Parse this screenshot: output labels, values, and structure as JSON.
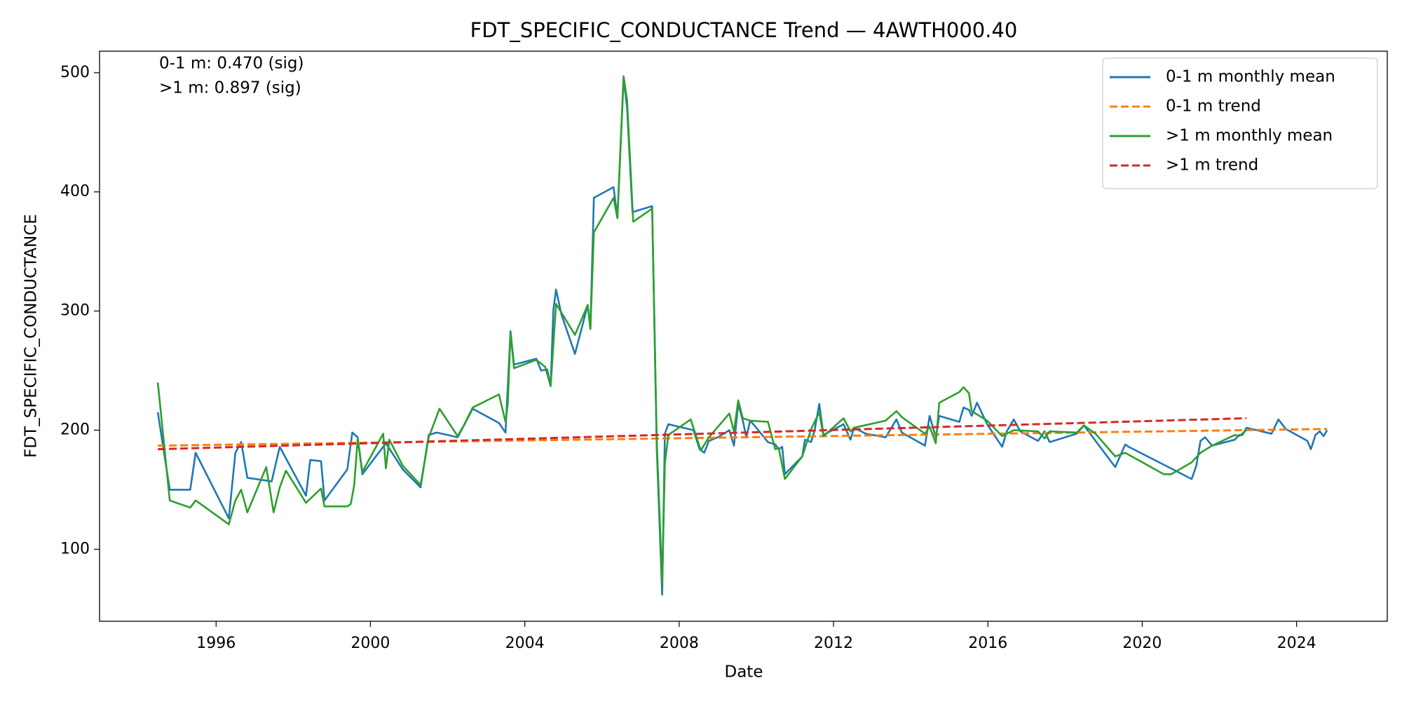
{
  "chart_data": {
    "type": "line",
    "title": "FDT_SPECIFIC_CONDUCTANCE Trend — 4AWTH000.40",
    "xlabel": "Date",
    "ylabel": "FDT_SPECIFIC_CONDUCTANCE",
    "annotations": [
      "0-1 m: 0.470 (sig)",
      ">1 m: 0.897 (sig)"
    ],
    "legend": "upper right",
    "grid": false,
    "xlim": [
      1992.98,
      2026.35
    ],
    "xticks": [
      1996,
      2000,
      2004,
      2008,
      2012,
      2016,
      2020,
      2024
    ],
    "ylim": [
      39.6,
      518.1
    ],
    "yticks": [
      100,
      200,
      300,
      400,
      500
    ],
    "series": [
      {
        "name": "0-1 m monthly mean",
        "color": "#1f77b4",
        "style": "solid",
        "x": [
          1994.49,
          1994.8,
          1995.33,
          1995.47,
          1996.33,
          1996.5,
          1996.65,
          1996.81,
          1997.44,
          1997.65,
          1998.33,
          1998.44,
          1998.72,
          1998.81,
          1999.4,
          1999.53,
          1999.67,
          1999.79,
          2000.4,
          2000.84,
          2001.3,
          2001.51,
          2001.72,
          2002.26,
          2002.65,
          2003.33,
          2003.5,
          2003.63,
          2003.72,
          2004.3,
          2004.42,
          2004.58,
          2004.67,
          2004.74,
          2004.81,
          2004.95,
          2005.3,
          2005.63,
          2005.7,
          2005.79,
          2006.3,
          2006.4,
          2006.56,
          2006.65,
          2006.79,
          2007.3,
          2007.42,
          2007.56,
          2007.63,
          2007.72,
          2008.37,
          2008.53,
          2008.65,
          2008.77,
          2009.0,
          2009.3,
          2009.42,
          2009.53,
          2009.65,
          2009.74,
          2009.84,
          2010.0,
          2010.3,
          2010.49,
          2010.58,
          2010.67,
          2010.74,
          2011.19,
          2011.26,
          2011.42,
          2011.51,
          2011.63,
          2011.74,
          2012.26,
          2012.44,
          2012.53,
          2012.84,
          2013.35,
          2013.63,
          2013.77,
          2014.37,
          2014.49,
          2014.65,
          2014.74,
          2015.26,
          2015.37,
          2015.51,
          2015.58,
          2015.72,
          2015.98,
          2016.37,
          2016.49,
          2016.67,
          2016.84,
          2017.3,
          2017.47,
          2017.6,
          2018.3,
          2018.49,
          2018.79,
          2019.3,
          2019.56,
          2019.65,
          2020.56,
          2021.28,
          2021.4,
          2021.51,
          2021.63,
          2021.81,
          2022.4,
          2022.51,
          2022.6,
          2022.7,
          2023.35,
          2023.53,
          2023.72,
          2024.28,
          2024.37,
          2024.49,
          2024.6,
          2024.7,
          2024.79
        ],
        "values": [
          215,
          150,
          150,
          181,
          126,
          181,
          190,
          160,
          157,
          186,
          145,
          175,
          174,
          141,
          167,
          198,
          194,
          163,
          189,
          167,
          152,
          196,
          198,
          194,
          218,
          206,
          198,
          283,
          255,
          260,
          250,
          251,
          237,
          301,
          318,
          297,
          264,
          305,
          285,
          395,
          404,
          378,
          495,
          471,
          383,
          388,
          184,
          62,
          197,
          205,
          200,
          184,
          181,
          191,
          194,
          200,
          187,
          222,
          208,
          194,
          208,
          202,
          190,
          188,
          184,
          186,
          163,
          178,
          192,
          190,
          200,
          222,
          196,
          205,
          192,
          202,
          197,
          194,
          209,
          198,
          187,
          212,
          194,
          212,
          207,
          219,
          217,
          212,
          223,
          205,
          186,
          199,
          209,
          199,
          191,
          199,
          190,
          197,
          204,
          191,
          169,
          188,
          186,
          171,
          159,
          170,
          191,
          194,
          187,
          192,
          196,
          196,
          202,
          197,
          209,
          201,
          191,
          184,
          196,
          199,
          195,
          200
        ]
      },
      {
        "name": "0-1 m trend",
        "color": "#ff7f0e",
        "style": "dashed",
        "x": [
          1994.49,
          2024.79
        ],
        "values": [
          187,
          201
        ]
      },
      {
        "name": ">1 m monthly mean",
        "color": "#2ca02c",
        "style": "solid",
        "x": [
          1994.49,
          1994.8,
          1995.33,
          1995.47,
          1996.33,
          1996.5,
          1996.65,
          1996.81,
          1997.3,
          1997.49,
          1997.65,
          1997.81,
          1998.33,
          1998.72,
          1998.81,
          1999.4,
          1999.49,
          1999.58,
          1999.67,
          1999.79,
          2000.33,
          2000.4,
          2000.49,
          2000.84,
          2001.3,
          2001.51,
          2001.79,
          2002.26,
          2002.42,
          2002.65,
          2003.33,
          2003.5,
          2003.56,
          2003.63,
          2003.72,
          2004.3,
          2004.53,
          2004.67,
          2004.81,
          2005.3,
          2005.63,
          2005.7,
          2005.79,
          2006.3,
          2006.4,
          2006.56,
          2006.65,
          2006.81,
          2007.3,
          2007.42,
          2007.56,
          2007.63,
          2007.72,
          2008.3,
          2008.56,
          2008.77,
          2009.3,
          2009.42,
          2009.53,
          2009.65,
          2009.84,
          2010.3,
          2010.49,
          2010.58,
          2010.74,
          2011.19,
          2011.42,
          2011.63,
          2011.74,
          2012.26,
          2012.44,
          2012.53,
          2013.35,
          2013.63,
          2013.77,
          2014.37,
          2014.49,
          2014.65,
          2014.74,
          2015.26,
          2015.37,
          2015.51,
          2015.58,
          2015.98,
          2016.37,
          2016.67,
          2017.3,
          2017.47,
          2017.6,
          2018.3,
          2018.49,
          2018.79,
          2019.3,
          2019.56,
          2020.56,
          2020.75,
          2021.28,
          2021.51,
          2021.81,
          2022.4,
          2022.51,
          2022.7
        ],
        "values": [
          240,
          141,
          135,
          141,
          121,
          141,
          150,
          131,
          169,
          131,
          152,
          166,
          139,
          151,
          136,
          136,
          138,
          154,
          193,
          165,
          197,
          168,
          192,
          170,
          154,
          194,
          218,
          195,
          204,
          219,
          230,
          207,
          222,
          282,
          252,
          259,
          253,
          237,
          306,
          280,
          305,
          285,
          366,
          395,
          378,
          497,
          477,
          375,
          386,
          191,
          72,
          172,
          196,
          209,
          183,
          194,
          214,
          199,
          225,
          210,
          208,
          207,
          184,
          185,
          159,
          178,
          201,
          215,
          195,
          210,
          199,
          202,
          208,
          216,
          211,
          197,
          203,
          189,
          223,
          232,
          236,
          231,
          216,
          208,
          195,
          200,
          199,
          193,
          199,
          198,
          204,
          197,
          178,
          181,
          163,
          163,
          173,
          181,
          187,
          196,
          195,
          200
        ]
      },
      {
        "name": ">1 m trend",
        "color": "#d62728",
        "style": "dashed",
        "x": [
          1994.49,
          2022.7
        ],
        "values": [
          184,
          210
        ]
      }
    ]
  }
}
